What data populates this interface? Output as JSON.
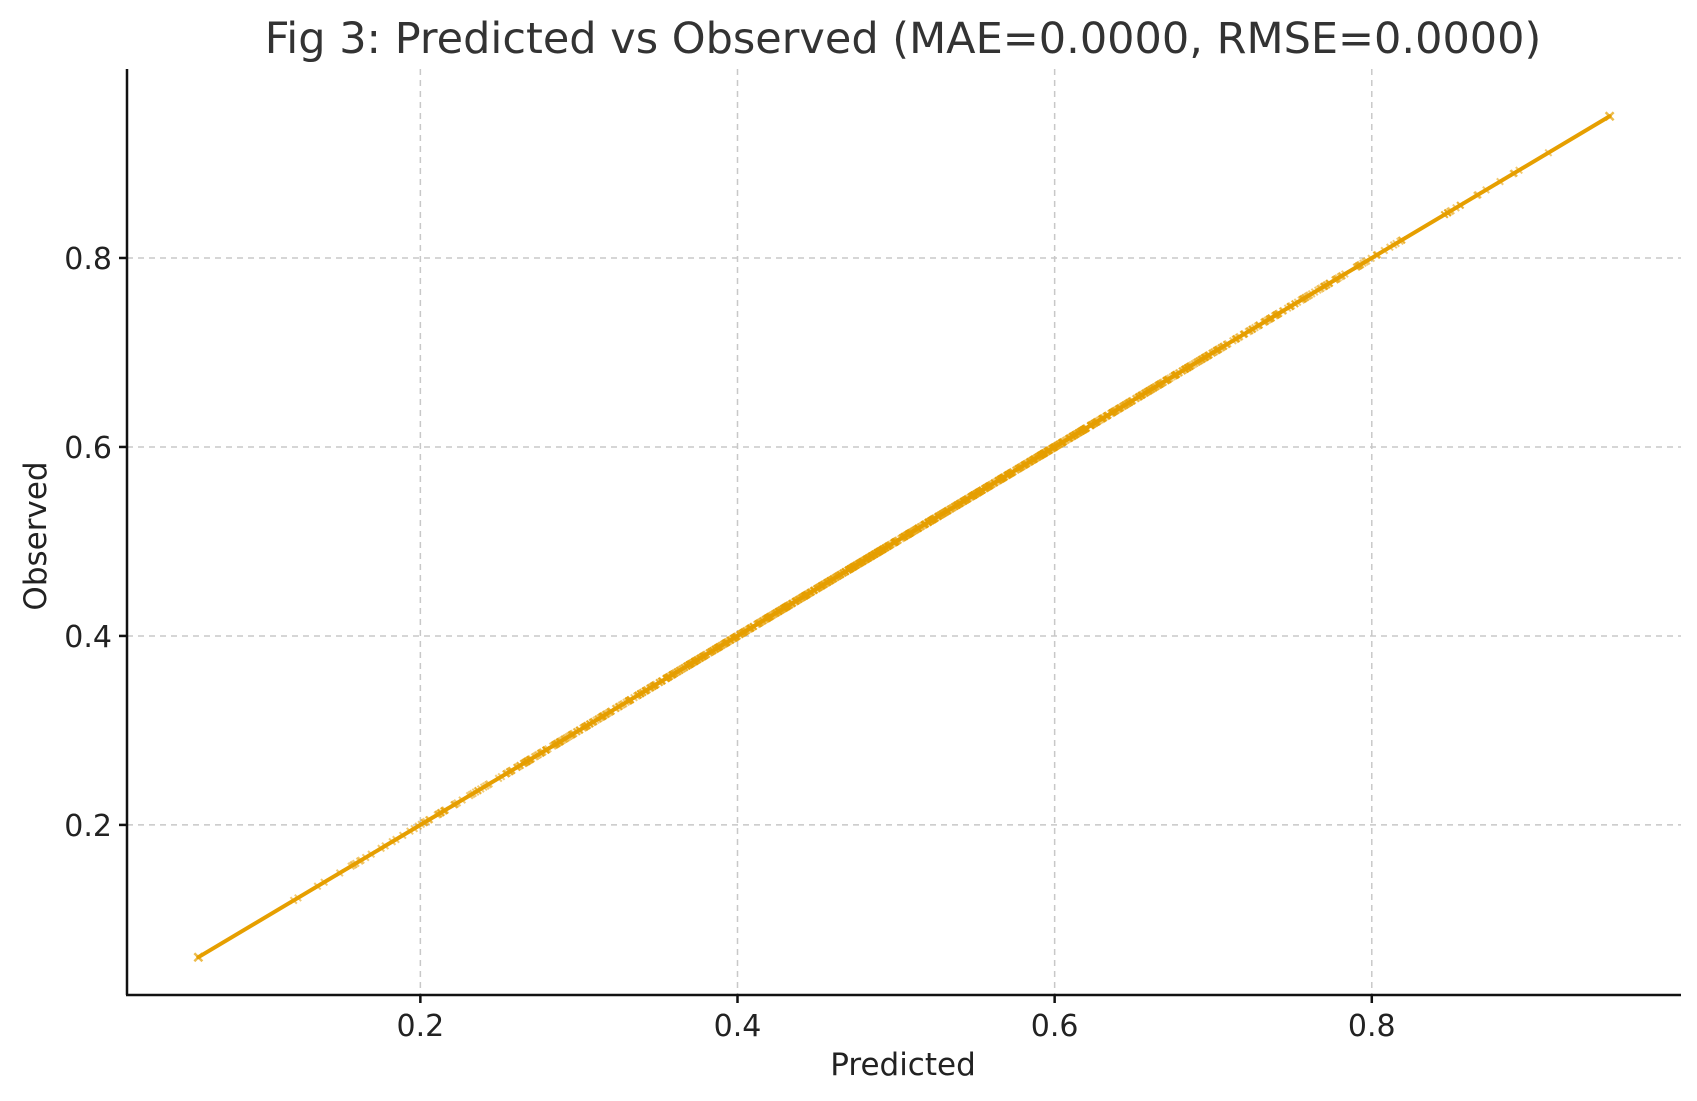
{
  "chart_data": {
    "type": "scatter",
    "title": "Fig 3: Predicted vs Observed (MAE=0.0000, RMSE=0.0000)",
    "xlabel": "Predicted",
    "ylabel": "Observed",
    "xlim": [
      0.015,
      0.995
    ],
    "ylim": [
      0.02,
      1.0
    ],
    "xticks": [
      0.2,
      0.4,
      0.6,
      0.8
    ],
    "yticks": [
      0.2,
      0.4,
      0.6,
      0.8
    ],
    "xtick_labels": [
      "0.2",
      "0.4",
      "0.6",
      "0.8"
    ],
    "ytick_labels": [
      "0.2",
      "0.4",
      "0.6",
      "0.8"
    ],
    "grid": true,
    "marker_color": "#E69F00",
    "series": [
      {
        "x_range": [
          0.06,
          0.95
        ],
        "relationship": "observed = predicted"
      }
    ],
    "reference_line": {
      "x": [
        0.06,
        0.95
      ],
      "y": [
        0.06,
        0.95
      ],
      "color": "#E69F00"
    }
  }
}
